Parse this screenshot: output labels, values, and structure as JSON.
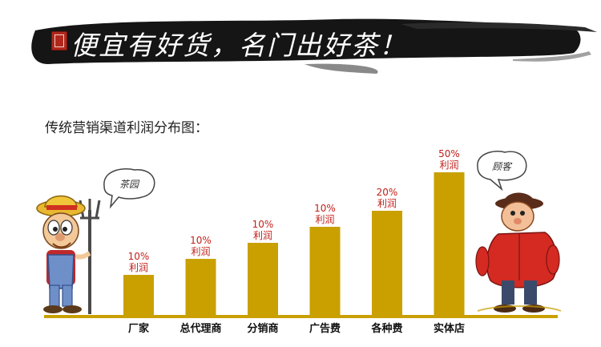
{
  "banner": {
    "slogan": "便宜有好货，名门出好茶！"
  },
  "subtitle": "传统营销渠道利润分布图：",
  "farmer_bubble": "茶园",
  "customer_bubble": "顾客",
  "colors": {
    "bar": "#c9a000",
    "baseline": "#c9a000",
    "profit_text": "#c0201a"
  },
  "chart_data": {
    "type": "bar",
    "title": "传统营销渠道利润分布图：",
    "categories": [
      "厂家",
      "总代理商",
      "分销商",
      "广告费",
      "各种费",
      "实体店"
    ],
    "values": [
      10,
      10,
      10,
      10,
      20,
      50
    ],
    "heights": [
      52,
      72,
      92,
      112,
      132,
      180
    ],
    "value_labels": [
      "10%",
      "10%",
      "10%",
      "10%",
      "20%",
      "50%"
    ],
    "value_suffix": "利润",
    "ylim": [
      0,
      200
    ],
    "grid": false,
    "legend": "none"
  }
}
